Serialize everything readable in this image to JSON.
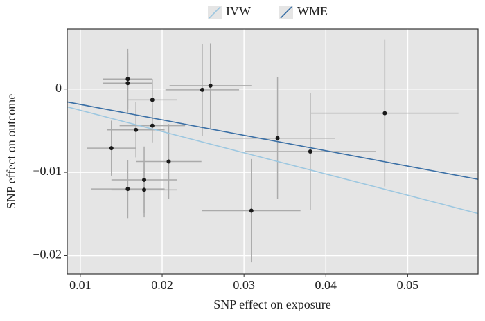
{
  "chart_data": {
    "type": "scatter",
    "xlabel": "SNP effect on exposure",
    "ylabel": "SNP effect on outcome",
    "xlim": [
      0.0084,
      0.0586
    ],
    "ylim": [
      -0.0222,
      0.0072
    ],
    "xticks": [
      0.01,
      0.02,
      0.03,
      0.04,
      0.05
    ],
    "yticks": [
      {
        "value": -0.02,
        "label": "−0.02"
      },
      {
        "value": -0.01,
        "label": "−0.01"
      },
      0
    ],
    "grid": true,
    "legend_position": "top",
    "series": [
      {
        "color": "#1a1a1a",
        "error_color": "#aaaaaa",
        "x": [
          0.0158,
          0.0158,
          0.0188,
          0.0168,
          0.0188,
          0.0138,
          0.0208,
          0.0178,
          0.0158,
          0.0178,
          0.0249,
          0.0259,
          0.0309,
          0.0341,
          0.0381,
          0.0472
        ],
        "values": [
          0.0012,
          0.0007,
          -0.0013,
          -0.0049,
          -0.0044,
          -0.0071,
          -0.0087,
          -0.0109,
          -0.012,
          -0.0121,
          -0.0001,
          0.0004,
          -0.0146,
          -0.0059,
          -0.0075,
          -0.0029
        ],
        "xerr": [
          0.003,
          0.003,
          0.003,
          0.0035,
          0.004,
          0.003,
          0.004,
          0.004,
          0.0045,
          0.004,
          0.0045,
          0.005,
          0.006,
          0.007,
          0.008,
          0.009
        ],
        "yerr": [
          0.0036,
          0.0036,
          0.0025,
          0.0033,
          0.002,
          0.0033,
          0.0045,
          0.004,
          0.0035,
          0.0033,
          0.0055,
          0.0051,
          0.0062,
          0.0073,
          0.007,
          0.0088
        ]
      }
    ],
    "lines": [
      {
        "name": "IVW",
        "color": "#9cc7e0",
        "slope": -0.255,
        "intercept": 0
      },
      {
        "name": "WME",
        "color": "#3a6fa5",
        "slope": -0.185,
        "intercept": 0
      }
    ]
  }
}
